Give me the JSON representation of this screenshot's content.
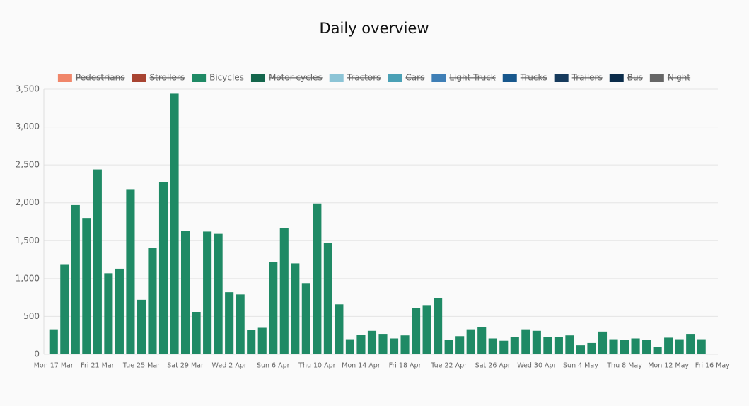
{
  "chart_data": {
    "type": "bar",
    "title": "Daily overview",
    "categories": [
      "Mon 17 Mar",
      null,
      null,
      null,
      "Fri 21 Mar",
      null,
      null,
      null,
      "Tue 25 Mar",
      null,
      null,
      null,
      "Sat 29 Mar",
      null,
      null,
      null,
      "Wed 2 Apr",
      null,
      null,
      null,
      "Sun 6 Apr",
      null,
      null,
      null,
      "Thu 10 Apr",
      null,
      null,
      null,
      "Mon 14 Apr",
      null,
      null,
      null,
      "Fri 18 Apr",
      null,
      null,
      null,
      "Tue 22 Apr",
      null,
      null,
      null,
      "Sat 26 Apr",
      null,
      null,
      null,
      "Wed 30 Apr",
      null,
      null,
      null,
      "Sun 4 May",
      null,
      null,
      null,
      "Thu 8 May",
      null,
      null,
      null,
      "Mon 12 May",
      null,
      null,
      null,
      "Fri 16 May"
    ],
    "series": [
      {
        "name": "Pedestrians",
        "color": "#f0866a",
        "hidden": true
      },
      {
        "name": "Strollers",
        "color": "#a84432",
        "hidden": true
      },
      {
        "name": "Bicycles",
        "color": "#1f8a65",
        "values": [
          330,
          1190,
          1970,
          1800,
          2440,
          1070,
          1130,
          2180,
          720,
          1400,
          2270,
          3440,
          1630,
          560,
          1620,
          1590,
          820,
          790,
          320,
          350,
          1220,
          1670,
          1200,
          940,
          1990,
          1470,
          660,
          200,
          260,
          310,
          270,
          210,
          250,
          610,
          650,
          740,
          190,
          240,
          330,
          360,
          210,
          180,
          230,
          330,
          310,
          230,
          230,
          250,
          120,
          150,
          300,
          200,
          190,
          210,
          190,
          100,
          220,
          200,
          270,
          200,
          0
        ]
      },
      {
        "name": "Motor cycles",
        "color": "#14664c",
        "hidden": true
      },
      {
        "name": "Tractors",
        "color": "#8cc4d6",
        "hidden": true
      },
      {
        "name": "Cars",
        "color": "#4aa0b5",
        "hidden": true
      },
      {
        "name": "Light Truck",
        "color": "#3f7fb6",
        "hidden": true
      },
      {
        "name": "Trucks",
        "color": "#17578c",
        "hidden": true
      },
      {
        "name": "Trailers",
        "color": "#163a5c",
        "hidden": true
      },
      {
        "name": "Bus",
        "color": "#0b2c4a",
        "hidden": true
      },
      {
        "name": "Night",
        "color": "#666666",
        "hidden": true
      }
    ],
    "ylim": [
      0,
      3500
    ],
    "yticks": [
      0,
      {
        "value": 500,
        "label": "500"
      },
      {
        "value": 1000,
        "label": "1,000"
      },
      {
        "value": 1500,
        "label": "1,500"
      },
      {
        "value": 2000,
        "label": "2,000"
      },
      {
        "value": 2500,
        "label": "2,500"
      },
      {
        "value": 3000,
        "label": "3,000"
      },
      {
        "value": 3500,
        "label": "3,500"
      }
    ],
    "grid": true,
    "legend": "top"
  }
}
